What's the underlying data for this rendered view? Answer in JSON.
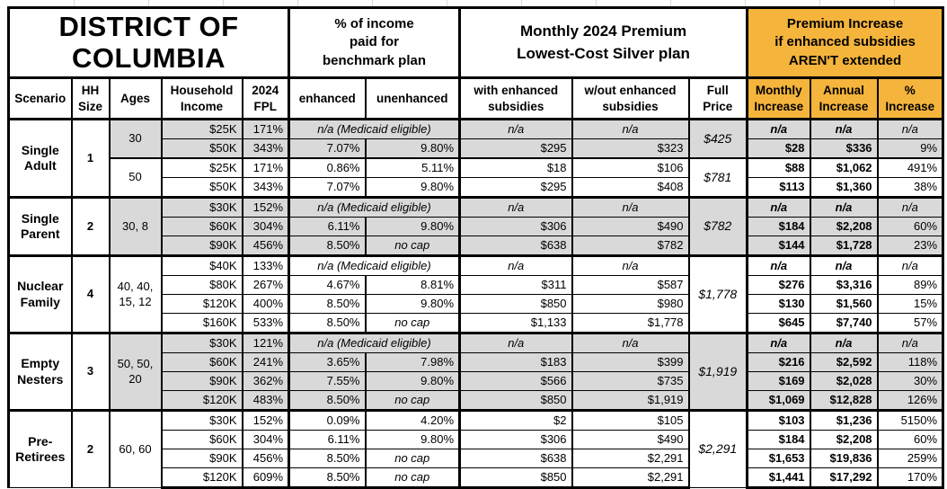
{
  "colors": {
    "accent_orange": "#F5B43C",
    "row_shade": "#D9D9D9",
    "border": "#000000",
    "gridline": "#D9D9D9"
  },
  "title": "DISTRICT OF\nCOLUMBIA",
  "header_groups": [
    "% of income\npaid for\nbenchmark plan",
    "Monthly 2024 Premium\nLowest-Cost Silver plan",
    "Premium Increase\nif enhanced subsidies\nAREN'T extended"
  ],
  "columns": [
    "Scenario",
    "HH\nSize",
    "Ages",
    "Household\nIncome",
    "2024\nFPL",
    "enhanced",
    "unenhanced",
    "with enhanced\nsubsidies",
    "w/out enhanced\nsubsidies",
    "Full\nPrice",
    "Monthly\nIncrease",
    "Annual\nIncrease",
    "%\nIncrease"
  ],
  "groups": [
    {
      "scenario": "Single Adult",
      "hh_size": "1",
      "age_blocks": [
        {
          "ages": "30",
          "shaded": true,
          "full_price": "$425",
          "rows": [
            {
              "income": "$25K",
              "fpl": "171%",
              "enhanced": "n/a (Medicaid eligible)",
              "unenhanced": "",
              "with_sub": "n/a",
              "wout_sub": "n/a",
              "monthly": "n/a",
              "annual": "n/a",
              "pct": "n/a"
            },
            {
              "income": "$50K",
              "fpl": "343%",
              "enhanced": "7.07%",
              "unenhanced": "9.80%",
              "with_sub": "$295",
              "wout_sub": "$323",
              "monthly": "$28",
              "annual": "$336",
              "pct": "9%"
            }
          ]
        },
        {
          "ages": "50",
          "shaded": false,
          "full_price": "$781",
          "rows": [
            {
              "income": "$25K",
              "fpl": "171%",
              "enhanced": "0.86%",
              "unenhanced": "5.11%",
              "with_sub": "$18",
              "wout_sub": "$106",
              "monthly": "$88",
              "annual": "$1,062",
              "pct": "491%"
            },
            {
              "income": "$50K",
              "fpl": "343%",
              "enhanced": "7.07%",
              "unenhanced": "9.80%",
              "with_sub": "$295",
              "wout_sub": "$408",
              "monthly": "$113",
              "annual": "$1,360",
              "pct": "38%"
            }
          ]
        }
      ]
    },
    {
      "scenario": "Single Parent",
      "hh_size": "2",
      "age_blocks": [
        {
          "ages": "30, 8",
          "shaded": true,
          "full_price": "$782",
          "rows": [
            {
              "income": "$30K",
              "fpl": "152%",
              "enhanced": "n/a (Medicaid eligible)",
              "unenhanced": "",
              "with_sub": "n/a",
              "wout_sub": "n/a",
              "monthly": "n/a",
              "annual": "n/a",
              "pct": "n/a"
            },
            {
              "income": "$60K",
              "fpl": "304%",
              "enhanced": "6.11%",
              "unenhanced": "9.80%",
              "with_sub": "$306",
              "wout_sub": "$490",
              "monthly": "$184",
              "annual": "$2,208",
              "pct": "60%"
            },
            {
              "income": "$90K",
              "fpl": "456%",
              "enhanced": "8.50%",
              "unenhanced": "no cap",
              "with_sub": "$638",
              "wout_sub": "$782",
              "monthly": "$144",
              "annual": "$1,728",
              "pct": "23%"
            }
          ]
        }
      ]
    },
    {
      "scenario": "Nuclear Family",
      "hh_size": "4",
      "age_blocks": [
        {
          "ages": "40, 40, 15, 12",
          "shaded": false,
          "full_price": "$1,778",
          "rows": [
            {
              "income": "$40K",
              "fpl": "133%",
              "enhanced": "n/a (Medicaid eligible)",
              "unenhanced": "",
              "with_sub": "n/a",
              "wout_sub": "n/a",
              "monthly": "n/a",
              "annual": "n/a",
              "pct": "n/a"
            },
            {
              "income": "$80K",
              "fpl": "267%",
              "enhanced": "4.67%",
              "unenhanced": "8.81%",
              "with_sub": "$311",
              "wout_sub": "$587",
              "monthly": "$276",
              "annual": "$3,316",
              "pct": "89%"
            },
            {
              "income": "$120K",
              "fpl": "400%",
              "enhanced": "8.50%",
              "unenhanced": "9.80%",
              "with_sub": "$850",
              "wout_sub": "$980",
              "monthly": "$130",
              "annual": "$1,560",
              "pct": "15%"
            },
            {
              "income": "$160K",
              "fpl": "533%",
              "enhanced": "8.50%",
              "unenhanced": "no cap",
              "with_sub": "$1,133",
              "wout_sub": "$1,778",
              "monthly": "$645",
              "annual": "$7,740",
              "pct": "57%"
            }
          ]
        }
      ]
    },
    {
      "scenario": "Empty Nesters",
      "hh_size": "3",
      "age_blocks": [
        {
          "ages": "50, 50, 20",
          "shaded": true,
          "full_price": "$1,919",
          "rows": [
            {
              "income": "$30K",
              "fpl": "121%",
              "enhanced": "n/a (Medicaid eligible)",
              "unenhanced": "",
              "with_sub": "n/a",
              "wout_sub": "n/a",
              "monthly": "n/a",
              "annual": "n/a",
              "pct": "n/a"
            },
            {
              "income": "$60K",
              "fpl": "241%",
              "enhanced": "3.65%",
              "unenhanced": "7.98%",
              "with_sub": "$183",
              "wout_sub": "$399",
              "monthly": "$216",
              "annual": "$2,592",
              "pct": "118%"
            },
            {
              "income": "$90K",
              "fpl": "362%",
              "enhanced": "7.55%",
              "unenhanced": "9.80%",
              "with_sub": "$566",
              "wout_sub": "$735",
              "monthly": "$169",
              "annual": "$2,028",
              "pct": "30%"
            },
            {
              "income": "$120K",
              "fpl": "483%",
              "enhanced": "8.50%",
              "unenhanced": "no cap",
              "with_sub": "$850",
              "wout_sub": "$1,919",
              "monthly": "$1,069",
              "annual": "$12,828",
              "pct": "126%"
            }
          ]
        }
      ]
    },
    {
      "scenario": "Pre-Retirees",
      "hh_size": "2",
      "age_blocks": [
        {
          "ages": "60, 60",
          "shaded": false,
          "full_price": "$2,291",
          "rows": [
            {
              "income": "$30K",
              "fpl": "152%",
              "enhanced": "0.09%",
              "unenhanced": "4.20%",
              "with_sub": "$2",
              "wout_sub": "$105",
              "monthly": "$103",
              "annual": "$1,236",
              "pct": "5150%"
            },
            {
              "income": "$60K",
              "fpl": "304%",
              "enhanced": "6.11%",
              "unenhanced": "9.80%",
              "with_sub": "$306",
              "wout_sub": "$490",
              "monthly": "$184",
              "annual": "$2,208",
              "pct": "60%"
            },
            {
              "income": "$90K",
              "fpl": "456%",
              "enhanced": "8.50%",
              "unenhanced": "no cap",
              "with_sub": "$638",
              "wout_sub": "$2,291",
              "monthly": "$1,653",
              "annual": "$19,836",
              "pct": "259%"
            },
            {
              "income": "$120K",
              "fpl": "609%",
              "enhanced": "8.50%",
              "unenhanced": "no cap",
              "with_sub": "$850",
              "wout_sub": "$2,291",
              "monthly": "$1,441",
              "annual": "$17,292",
              "pct": "170%"
            }
          ]
        }
      ]
    }
  ]
}
